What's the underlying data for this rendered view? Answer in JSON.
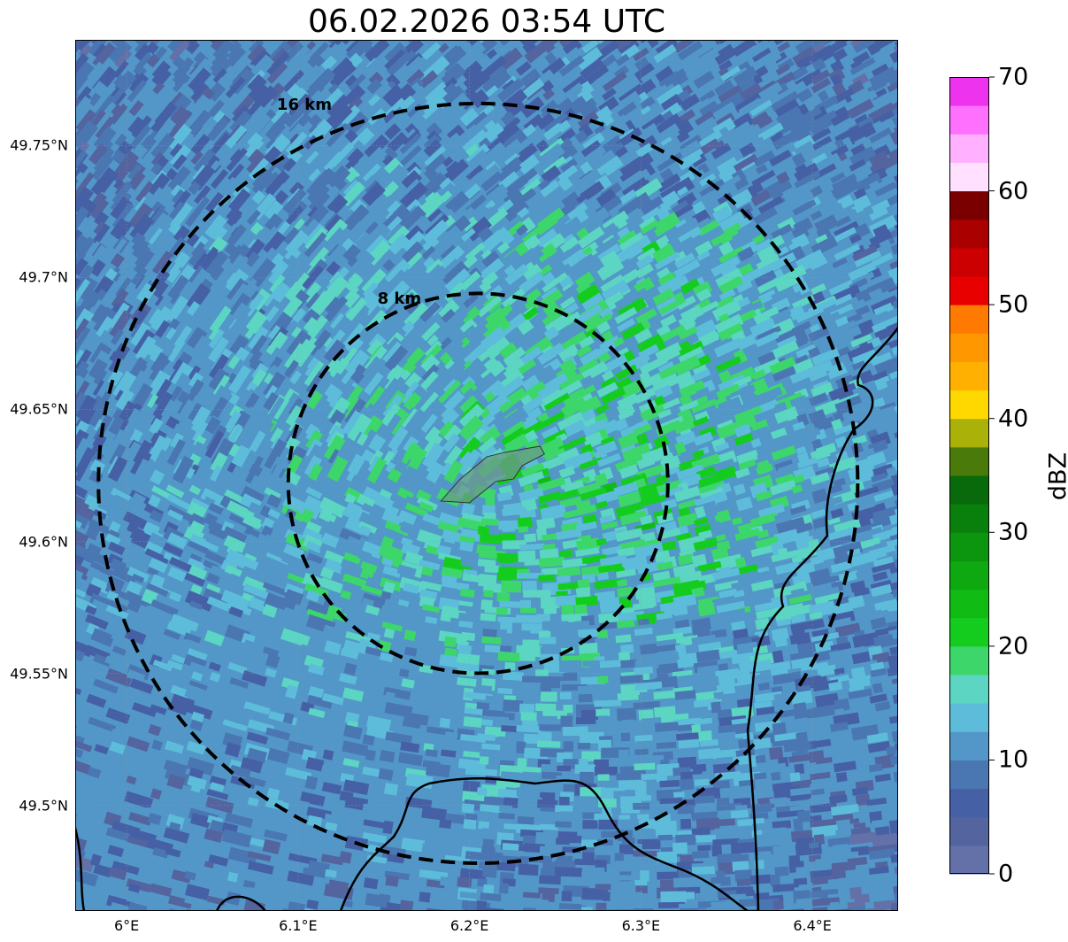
{
  "title": "06.02.2026 03:54 UTC",
  "map": {
    "lon_range": [
      5.97,
      6.45
    ],
    "lat_range": [
      49.46,
      49.79
    ],
    "center": {
      "lon": 6.205,
      "lat": 49.622
    },
    "lat_ticks": [
      {
        "value": 49.75,
        "label": "49.75°N"
      },
      {
        "value": 49.7,
        "label": "49.7°N"
      },
      {
        "value": 49.65,
        "label": "49.65°N"
      },
      {
        "value": 49.6,
        "label": "49.6°N"
      },
      {
        "value": 49.55,
        "label": "49.55°N"
      },
      {
        "value": 49.5,
        "label": "49.5°N"
      }
    ],
    "lon_ticks": [
      {
        "value": 6.0,
        "label": "6°E"
      },
      {
        "value": 6.1,
        "label": "6.1°E"
      },
      {
        "value": 6.2,
        "label": "6.2°E"
      },
      {
        "value": 6.3,
        "label": "6.3°E"
      },
      {
        "value": 6.4,
        "label": "6.4°E"
      }
    ],
    "range_rings": [
      {
        "km": 16,
        "label": "16 km"
      },
      {
        "km": 8,
        "label": "8 km"
      }
    ],
    "ring_color": "#000000",
    "background_color": "#ffffff"
  },
  "colorbar": {
    "label": "dBZ",
    "min": 0,
    "max": 70,
    "ticks": [
      {
        "value": 70,
        "label": "70"
      },
      {
        "value": 60,
        "label": "60"
      },
      {
        "value": 50,
        "label": "50"
      },
      {
        "value": 40,
        "label": "40"
      },
      {
        "value": 30,
        "label": "30"
      },
      {
        "value": 20,
        "label": "20"
      },
      {
        "value": 10,
        "label": "10"
      },
      {
        "value": 0,
        "label": "0"
      }
    ],
    "colors": [
      "#6371a8",
      "#53649f",
      "#4660a5",
      "#4a76b2",
      "#5297c7",
      "#5ebcdb",
      "#5cd5c2",
      "#3cd66b",
      "#14cc1e",
      "#10bb14",
      "#0ea810",
      "#0c950e",
      "#0a800c",
      "#086a0a",
      "#4a7a0a",
      "#aab20a",
      "#ffd800",
      "#ffb000",
      "#ff9800",
      "#ff7a00",
      "#e80000",
      "#cc0000",
      "#aa0000",
      "#7a0000",
      "#ffe0ff",
      "#ffb0ff",
      "#ff70ff",
      "#ee33ee"
    ]
  }
}
